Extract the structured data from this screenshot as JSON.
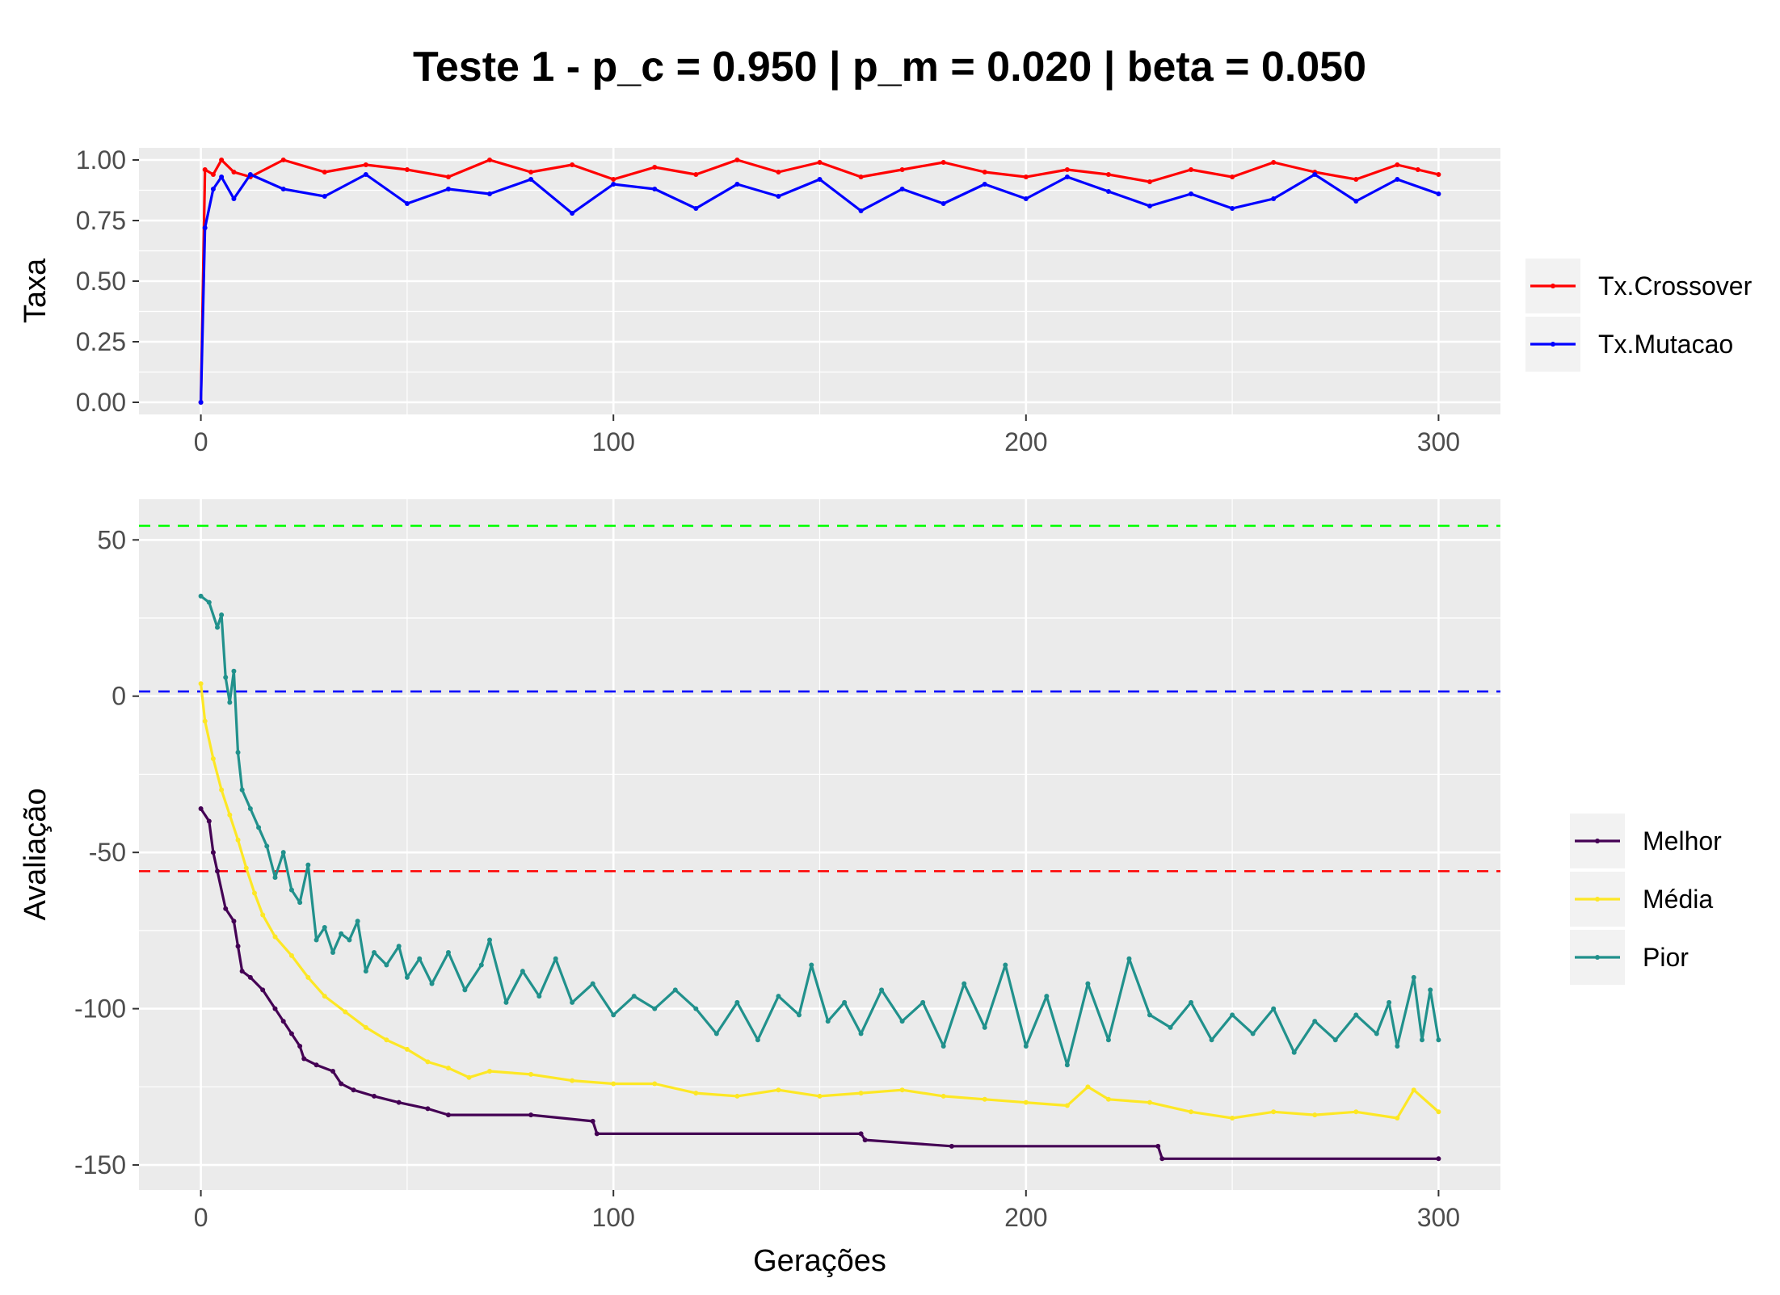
{
  "title": "Teste 1 - p_c = 0.950 | p_m = 0.020 | beta = 0.050",
  "colors": {
    "panel_bg": "#ebebeb",
    "grid": "#ffffff",
    "crossover": "#ff0000",
    "mutacao": "#0000ff",
    "melhor": "#440154",
    "media": "#fde725",
    "pior": "#21918c",
    "ref_top": "#00ff00",
    "ref_mid": "#0000ff",
    "ref_low": "#ff0000"
  },
  "chart_data": [
    {
      "type": "line",
      "ylabel": "Taxa",
      "xlim": [
        -15,
        315
      ],
      "ylim": [
        -0.05,
        1.05
      ],
      "x_ticks": [
        "0",
        "100",
        "200",
        "300"
      ],
      "x_tick_values": [
        0,
        100,
        200,
        300
      ],
      "y_ticks": [
        "0.00",
        "0.25",
        "0.50",
        "0.75",
        "1.00"
      ],
      "y_tick_values": [
        0,
        0.25,
        0.5,
        0.75,
        1.0
      ],
      "legend": {
        "position": "right",
        "entries": [
          "Tx.Crossover",
          "Tx.Mutacao"
        ]
      },
      "series": [
        {
          "name": "Tx.Crossover",
          "color": "crossover",
          "points": [
            [
              0,
              0.0
            ],
            [
              1,
              0.96
            ],
            [
              3,
              0.94
            ],
            [
              5,
              1.0
            ],
            [
              8,
              0.95
            ],
            [
              12,
              0.93
            ],
            [
              20,
              1.0
            ],
            [
              30,
              0.95
            ],
            [
              40,
              0.98
            ],
            [
              50,
              0.96
            ],
            [
              60,
              0.93
            ],
            [
              70,
              1.0
            ],
            [
              80,
              0.95
            ],
            [
              90,
              0.98
            ],
            [
              100,
              0.92
            ],
            [
              110,
              0.97
            ],
            [
              120,
              0.94
            ],
            [
              130,
              1.0
            ],
            [
              140,
              0.95
            ],
            [
              150,
              0.99
            ],
            [
              160,
              0.93
            ],
            [
              170,
              0.96
            ],
            [
              180,
              0.99
            ],
            [
              190,
              0.95
            ],
            [
              200,
              0.93
            ],
            [
              210,
              0.96
            ],
            [
              220,
              0.94
            ],
            [
              230,
              0.91
            ],
            [
              240,
              0.96
            ],
            [
              250,
              0.93
            ],
            [
              260,
              0.99
            ],
            [
              270,
              0.95
            ],
            [
              280,
              0.92
            ],
            [
              290,
              0.98
            ],
            [
              295,
              0.96
            ],
            [
              300,
              0.94
            ]
          ]
        },
        {
          "name": "Tx.Mutacao",
          "color": "mutacao",
          "points": [
            [
              0,
              0.0
            ],
            [
              1,
              0.72
            ],
            [
              3,
              0.88
            ],
            [
              5,
              0.93
            ],
            [
              8,
              0.84
            ],
            [
              12,
              0.94
            ],
            [
              20,
              0.88
            ],
            [
              30,
              0.85
            ],
            [
              40,
              0.94
            ],
            [
              50,
              0.82
            ],
            [
              60,
              0.88
            ],
            [
              70,
              0.86
            ],
            [
              80,
              0.92
            ],
            [
              90,
              0.78
            ],
            [
              100,
              0.9
            ],
            [
              110,
              0.88
            ],
            [
              120,
              0.8
            ],
            [
              130,
              0.9
            ],
            [
              140,
              0.85
            ],
            [
              150,
              0.92
            ],
            [
              160,
              0.79
            ],
            [
              170,
              0.88
            ],
            [
              180,
              0.82
            ],
            [
              190,
              0.9
            ],
            [
              200,
              0.84
            ],
            [
              210,
              0.93
            ],
            [
              220,
              0.87
            ],
            [
              230,
              0.81
            ],
            [
              240,
              0.86
            ],
            [
              250,
              0.8
            ],
            [
              260,
              0.84
            ],
            [
              270,
              0.94
            ],
            [
              280,
              0.83
            ],
            [
              290,
              0.92
            ],
            [
              300,
              0.86
            ]
          ]
        }
      ]
    },
    {
      "type": "line",
      "ylabel": "Avaliação",
      "xlabel": "Gerações",
      "xlim": [
        -15,
        315
      ],
      "ylim": [
        -158,
        63
      ],
      "x_ticks": [
        "0",
        "100",
        "200",
        "300"
      ],
      "x_tick_values": [
        0,
        100,
        200,
        300
      ],
      "y_ticks": [
        "-150",
        "-100",
        "-50",
        "0",
        "50"
      ],
      "y_tick_values": [
        -150,
        -100,
        -50,
        0,
        50
      ],
      "legend": {
        "position": "right",
        "entries": [
          "Melhor",
          "Média",
          "Pior"
        ]
      },
      "reference_lines": [
        {
          "y": 54.5,
          "color": "ref_top",
          "style": "dashed"
        },
        {
          "y": 1.5,
          "color": "ref_mid",
          "style": "dashed"
        },
        {
          "y": -56,
          "color": "ref_low",
          "style": "dashed"
        }
      ],
      "series": [
        {
          "name": "Melhor",
          "color": "melhor",
          "points": [
            [
              0,
              -36
            ],
            [
              2,
              -40
            ],
            [
              3,
              -50
            ],
            [
              4,
              -56
            ],
            [
              6,
              -68
            ],
            [
              8,
              -72
            ],
            [
              9,
              -80
            ],
            [
              10,
              -88
            ],
            [
              12,
              -90
            ],
            [
              15,
              -94
            ],
            [
              18,
              -100
            ],
            [
              20,
              -104
            ],
            [
              22,
              -108
            ],
            [
              24,
              -112
            ],
            [
              25,
              -116
            ],
            [
              28,
              -118
            ],
            [
              32,
              -120
            ],
            [
              34,
              -124
            ],
            [
              37,
              -126
            ],
            [
              42,
              -128
            ],
            [
              48,
              -130
            ],
            [
              55,
              -132
            ],
            [
              60,
              -134
            ],
            [
              80,
              -134
            ],
            [
              95,
              -136
            ],
            [
              96,
              -140
            ],
            [
              160,
              -140
            ],
            [
              161,
              -142
            ],
            [
              182,
              -144
            ],
            [
              232,
              -144
            ],
            [
              233,
              -148
            ],
            [
              300,
              -148
            ]
          ]
        },
        {
          "name": "Média",
          "color": "media",
          "points": [
            [
              0,
              4
            ],
            [
              1,
              -8
            ],
            [
              3,
              -20
            ],
            [
              5,
              -30
            ],
            [
              7,
              -38
            ],
            [
              9,
              -46
            ],
            [
              11,
              -55
            ],
            [
              13,
              -63
            ],
            [
              15,
              -70
            ],
            [
              18,
              -77
            ],
            [
              22,
              -83
            ],
            [
              26,
              -90
            ],
            [
              30,
              -96
            ],
            [
              35,
              -101
            ],
            [
              40,
              -106
            ],
            [
              45,
              -110
            ],
            [
              50,
              -113
            ],
            [
              55,
              -117
            ],
            [
              60,
              -119
            ],
            [
              65,
              -122
            ],
            [
              70,
              -120
            ],
            [
              80,
              -121
            ],
            [
              90,
              -123
            ],
            [
              100,
              -124
            ],
            [
              110,
              -124
            ],
            [
              120,
              -127
            ],
            [
              130,
              -128
            ],
            [
              140,
              -126
            ],
            [
              150,
              -128
            ],
            [
              160,
              -127
            ],
            [
              170,
              -126
            ],
            [
              180,
              -128
            ],
            [
              190,
              -129
            ],
            [
              200,
              -130
            ],
            [
              210,
              -131
            ],
            [
              215,
              -125
            ],
            [
              220,
              -129
            ],
            [
              230,
              -130
            ],
            [
              240,
              -133
            ],
            [
              250,
              -135
            ],
            [
              260,
              -133
            ],
            [
              270,
              -134
            ],
            [
              280,
              -133
            ],
            [
              290,
              -135
            ],
            [
              294,
              -126
            ],
            [
              300,
              -133
            ]
          ]
        },
        {
          "name": "Pior",
          "color": "pior",
          "points": [
            [
              0,
              32
            ],
            [
              2,
              30
            ],
            [
              4,
              22
            ],
            [
              5,
              26
            ],
            [
              6,
              6
            ],
            [
              7,
              -2
            ],
            [
              8,
              8
            ],
            [
              9,
              -18
            ],
            [
              10,
              -30
            ],
            [
              12,
              -36
            ],
            [
              14,
              -42
            ],
            [
              16,
              -48
            ],
            [
              18,
              -58
            ],
            [
              20,
              -50
            ],
            [
              22,
              -62
            ],
            [
              24,
              -66
            ],
            [
              26,
              -54
            ],
            [
              28,
              -78
            ],
            [
              30,
              -74
            ],
            [
              32,
              -82
            ],
            [
              34,
              -76
            ],
            [
              36,
              -78
            ],
            [
              38,
              -72
            ],
            [
              40,
              -88
            ],
            [
              42,
              -82
            ],
            [
              45,
              -86
            ],
            [
              48,
              -80
            ],
            [
              50,
              -90
            ],
            [
              53,
              -84
            ],
            [
              56,
              -92
            ],
            [
              60,
              -82
            ],
            [
              64,
              -94
            ],
            [
              68,
              -86
            ],
            [
              70,
              -78
            ],
            [
              74,
              -98
            ],
            [
              78,
              -88
            ],
            [
              82,
              -96
            ],
            [
              86,
              -84
            ],
            [
              90,
              -98
            ],
            [
              95,
              -92
            ],
            [
              100,
              -102
            ],
            [
              105,
              -96
            ],
            [
              110,
              -100
            ],
            [
              115,
              -94
            ],
            [
              120,
              -100
            ],
            [
              125,
              -108
            ],
            [
              130,
              -98
            ],
            [
              135,
              -110
            ],
            [
              140,
              -96
            ],
            [
              145,
              -102
            ],
            [
              148,
              -86
            ],
            [
              152,
              -104
            ],
            [
              156,
              -98
            ],
            [
              160,
              -108
            ],
            [
              165,
              -94
            ],
            [
              170,
              -104
            ],
            [
              175,
              -98
            ],
            [
              180,
              -112
            ],
            [
              185,
              -92
            ],
            [
              190,
              -106
            ],
            [
              195,
              -86
            ],
            [
              200,
              -112
            ],
            [
              205,
              -96
            ],
            [
              210,
              -118
            ],
            [
              215,
              -92
            ],
            [
              220,
              -110
            ],
            [
              225,
              -84
            ],
            [
              230,
              -102
            ],
            [
              235,
              -106
            ],
            [
              240,
              -98
            ],
            [
              245,
              -110
            ],
            [
              250,
              -102
            ],
            [
              255,
              -108
            ],
            [
              260,
              -100
            ],
            [
              265,
              -114
            ],
            [
              270,
              -104
            ],
            [
              275,
              -110
            ],
            [
              280,
              -102
            ],
            [
              285,
              -108
            ],
            [
              288,
              -98
            ],
            [
              290,
              -112
            ],
            [
              294,
              -90
            ],
            [
              296,
              -110
            ],
            [
              298,
              -94
            ],
            [
              300,
              -110
            ]
          ]
        }
      ]
    }
  ]
}
